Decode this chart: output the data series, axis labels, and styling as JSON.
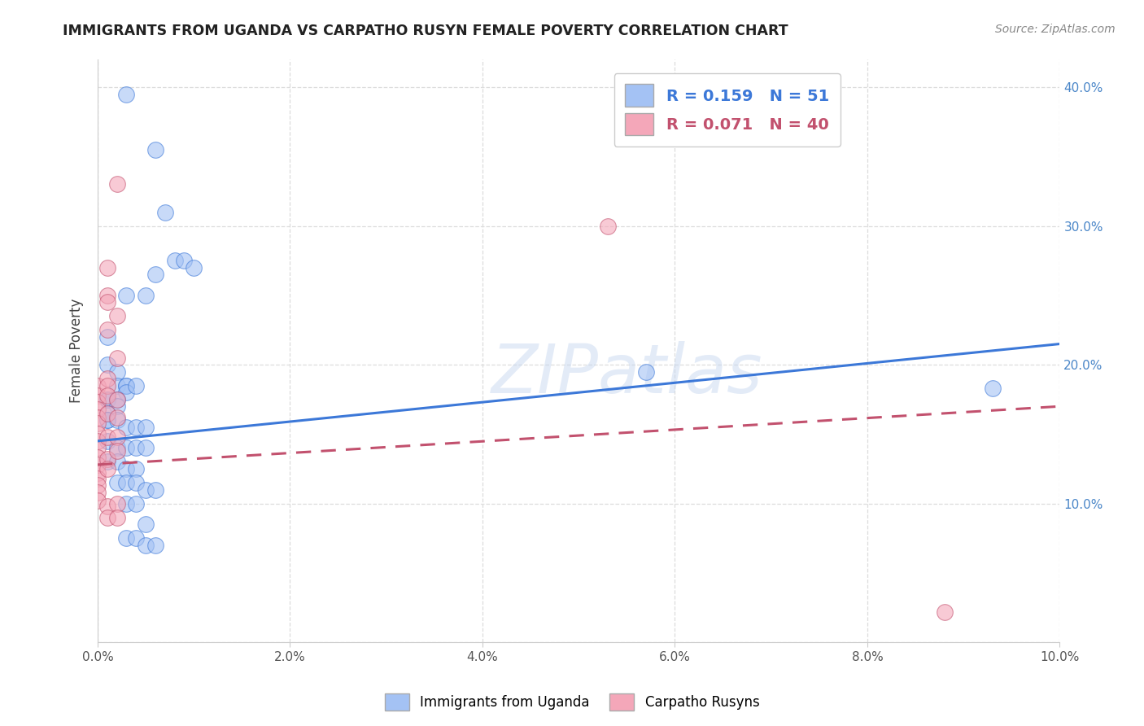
{
  "title": "IMMIGRANTS FROM UGANDA VS CARPATHO RUSYN FEMALE POVERTY CORRELATION CHART",
  "source": "Source: ZipAtlas.com",
  "ylabel": "Female Poverty",
  "xlim": [
    0.0,
    0.1
  ],
  "ylim": [
    0.0,
    0.42
  ],
  "xtick_labels": [
    "0.0%",
    "2.0%",
    "4.0%",
    "6.0%",
    "8.0%",
    "10.0%"
  ],
  "xtick_vals": [
    0.0,
    0.02,
    0.04,
    0.06,
    0.08,
    0.1
  ],
  "ytick_labels": [
    "",
    "10.0%",
    "20.0%",
    "30.0%",
    "40.0%"
  ],
  "ytick_vals": [
    0.0,
    0.1,
    0.2,
    0.3,
    0.4
  ],
  "legend_R1": "0.159",
  "legend_N1": "51",
  "legend_R2": "0.071",
  "legend_N2": "40",
  "blue_color": "#a4c2f4",
  "pink_color": "#f4a7b9",
  "line_blue": "#3c78d8",
  "line_pink": "#c2516e",
  "watermark": "ZIPatlas",
  "blue_scatter": [
    [
      0.003,
      0.395
    ],
    [
      0.006,
      0.355
    ],
    [
      0.007,
      0.31
    ],
    [
      0.008,
      0.275
    ],
    [
      0.009,
      0.275
    ],
    [
      0.006,
      0.265
    ],
    [
      0.01,
      0.27
    ],
    [
      0.003,
      0.25
    ],
    [
      0.005,
      0.25
    ],
    [
      0.001,
      0.22
    ],
    [
      0.001,
      0.2
    ],
    [
      0.002,
      0.195
    ],
    [
      0.002,
      0.185
    ],
    [
      0.003,
      0.185
    ],
    [
      0.003,
      0.185
    ],
    [
      0.003,
      0.18
    ],
    [
      0.004,
      0.185
    ],
    [
      0.001,
      0.175
    ],
    [
      0.001,
      0.175
    ],
    [
      0.002,
      0.175
    ],
    [
      0.002,
      0.17
    ],
    [
      0.001,
      0.165
    ],
    [
      0.001,
      0.16
    ],
    [
      0.001,
      0.16
    ],
    [
      0.002,
      0.16
    ],
    [
      0.003,
      0.155
    ],
    [
      0.004,
      0.155
    ],
    [
      0.005,
      0.155
    ],
    [
      0.001,
      0.145
    ],
    [
      0.002,
      0.14
    ],
    [
      0.003,
      0.14
    ],
    [
      0.004,
      0.14
    ],
    [
      0.005,
      0.14
    ],
    [
      0.001,
      0.13
    ],
    [
      0.002,
      0.13
    ],
    [
      0.003,
      0.125
    ],
    [
      0.004,
      0.125
    ],
    [
      0.002,
      0.115
    ],
    [
      0.003,
      0.115
    ],
    [
      0.004,
      0.115
    ],
    [
      0.005,
      0.11
    ],
    [
      0.006,
      0.11
    ],
    [
      0.003,
      0.1
    ],
    [
      0.004,
      0.1
    ],
    [
      0.005,
      0.085
    ],
    [
      0.003,
      0.075
    ],
    [
      0.004,
      0.075
    ],
    [
      0.005,
      0.07
    ],
    [
      0.006,
      0.07
    ],
    [
      0.057,
      0.195
    ],
    [
      0.093,
      0.183
    ]
  ],
  "pink_scatter": [
    [
      0.0,
      0.185
    ],
    [
      0.0,
      0.178
    ],
    [
      0.0,
      0.173
    ],
    [
      0.0,
      0.168
    ],
    [
      0.0,
      0.162
    ],
    [
      0.0,
      0.158
    ],
    [
      0.0,
      0.15
    ],
    [
      0.0,
      0.145
    ],
    [
      0.0,
      0.14
    ],
    [
      0.0,
      0.133
    ],
    [
      0.0,
      0.128
    ],
    [
      0.0,
      0.122
    ],
    [
      0.0,
      0.118
    ],
    [
      0.0,
      0.113
    ],
    [
      0.0,
      0.108
    ],
    [
      0.0,
      0.102
    ],
    [
      0.001,
      0.27
    ],
    [
      0.001,
      0.25
    ],
    [
      0.001,
      0.245
    ],
    [
      0.001,
      0.225
    ],
    [
      0.001,
      0.19
    ],
    [
      0.001,
      0.185
    ],
    [
      0.001,
      0.178
    ],
    [
      0.001,
      0.165
    ],
    [
      0.001,
      0.148
    ],
    [
      0.001,
      0.132
    ],
    [
      0.001,
      0.125
    ],
    [
      0.001,
      0.098
    ],
    [
      0.001,
      0.09
    ],
    [
      0.002,
      0.33
    ],
    [
      0.002,
      0.235
    ],
    [
      0.002,
      0.205
    ],
    [
      0.002,
      0.175
    ],
    [
      0.002,
      0.162
    ],
    [
      0.002,
      0.148
    ],
    [
      0.002,
      0.138
    ],
    [
      0.002,
      0.1
    ],
    [
      0.002,
      0.09
    ],
    [
      0.053,
      0.3
    ],
    [
      0.088,
      0.022
    ]
  ],
  "blue_line_x": [
    0.0,
    0.1
  ],
  "blue_line_y": [
    0.145,
    0.215
  ],
  "pink_line_x": [
    0.0,
    0.1
  ],
  "pink_line_y": [
    0.128,
    0.17
  ],
  "bg_color": "#ffffff",
  "grid_color": "#dddddd"
}
